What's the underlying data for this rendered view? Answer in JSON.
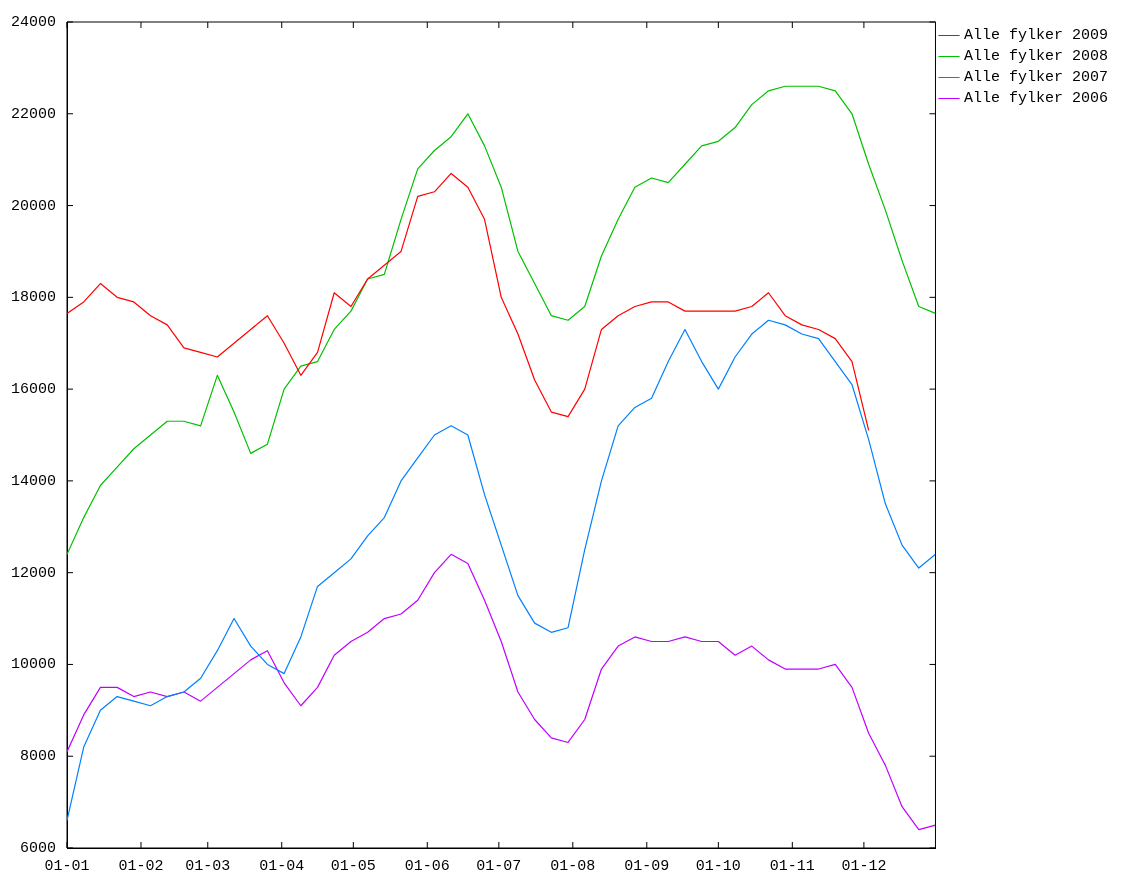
{
  "chart_data": {
    "type": "line",
    "x": [
      "--01-01",
      "--01-08",
      "--01-15",
      "--01-22",
      "--01-29",
      "--02-05",
      "--02-12",
      "--02-19",
      "--02-26",
      "--03-05",
      "--03-12",
      "--03-19",
      "--03-26",
      "--04-02",
      "--04-09",
      "--04-16",
      "--04-23",
      "--04-30",
      "--05-07",
      "--05-14",
      "--05-21",
      "--05-28",
      "--06-04",
      "--06-11",
      "--06-18",
      "--06-25",
      "--07-02",
      "--07-09",
      "--07-16",
      "--07-23",
      "--07-30",
      "--08-06",
      "--08-13",
      "--08-20",
      "--08-27",
      "--09-03",
      "--09-10",
      "--09-17",
      "--09-24",
      "--10-01",
      "--10-08",
      "--10-15",
      "--10-22",
      "--10-29",
      "--11-05",
      "--11-12",
      "--11-19",
      "--11-26",
      "--12-03",
      "--12-10",
      "--12-17",
      "--12-24",
      "--12-31"
    ],
    "series": [
      {
        "name": "Alle fylker 2009",
        "color": "#ff0000",
        "values": [
          17650,
          17900,
          18300,
          18000,
          17900,
          17600,
          17400,
          16900,
          16800,
          16700,
          17000,
          17300,
          17600,
          17000,
          16300,
          16800,
          18100,
          17800,
          18400,
          18700,
          19000,
          20200,
          20300,
          20700,
          20400,
          19700,
          18000,
          17200,
          16200,
          15500,
          15400,
          16000,
          17300,
          17600,
          17800,
          17900,
          17900,
          17700,
          17700,
          17700,
          17700,
          17800,
          18100,
          17600,
          17400,
          17300,
          17100,
          16600,
          15100,
          null,
          null,
          null,
          null
        ]
      },
      {
        "name": "Alle fylker 2008",
        "color": "#00c000",
        "values": [
          12400,
          13200,
          13900,
          14300,
          14700,
          15000,
          15300,
          15300,
          15200,
          16300,
          15500,
          14600,
          14800,
          16000,
          16500,
          16600,
          17300,
          17700,
          18400,
          18500,
          19700,
          20800,
          21200,
          21500,
          22000,
          21300,
          20400,
          19000,
          18300,
          17600,
          17500,
          17800,
          18900,
          19700,
          20400,
          20600,
          20500,
          20900,
          21300,
          21400,
          21700,
          22200,
          22500,
          22600,
          22600,
          22600,
          22500,
          22000,
          20900,
          19900,
          18800,
          17800,
          17650
        ]
      },
      {
        "name": "Alle fylker 2007",
        "color": "#0080ff",
        "values": [
          6600,
          8200,
          9000,
          9300,
          9200,
          9100,
          9300,
          9400,
          9700,
          10300,
          11000,
          10400,
          10000,
          9800,
          10600,
          11700,
          12000,
          12300,
          12800,
          13200,
          14000,
          14500,
          15000,
          15200,
          15000,
          13700,
          12600,
          11500,
          10900,
          10700,
          10800,
          12500,
          14000,
          15200,
          15600,
          15800,
          16600,
          17300,
          16600,
          16000,
          16700,
          17200,
          17500,
          17400,
          17200,
          17100,
          16600,
          16100,
          14900,
          13500,
          12600,
          12100,
          12400
        ]
      },
      {
        "name": "Alle fylker 2006",
        "color": "#c000ff",
        "values": [
          8100,
          8900,
          9500,
          9500,
          9300,
          9400,
          9300,
          9400,
          9200,
          9500,
          9800,
          10100,
          10300,
          9600,
          9100,
          9500,
          10200,
          10500,
          10700,
          11000,
          11100,
          11400,
          12000,
          12400,
          12200,
          11400,
          10500,
          9400,
          8800,
          8400,
          8300,
          8800,
          9900,
          10400,
          10600,
          10500,
          10500,
          10600,
          10500,
          10500,
          10200,
          10400,
          10100,
          9900,
          9900,
          9900,
          10000,
          9500,
          8500,
          7800,
          6900,
          6400,
          6500
        ]
      }
    ],
    "xlim": [
      "--01-01",
      "--12-31"
    ],
    "xticks": [
      {
        "value": "--01-01",
        "label": "01-01"
      },
      {
        "value": "--02-01",
        "label": "01-02"
      },
      {
        "value": "--03-01",
        "label": "01-03"
      },
      {
        "value": "--04-01",
        "label": "01-04"
      },
      {
        "value": "--05-01",
        "label": "01-05"
      },
      {
        "value": "--06-01",
        "label": "01-06"
      },
      {
        "value": "--07-01",
        "label": "01-07"
      },
      {
        "value": "--08-01",
        "label": "01-08"
      },
      {
        "value": "--09-01",
        "label": "01-09"
      },
      {
        "value": "--10-01",
        "label": "01-10"
      },
      {
        "value": "--11-01",
        "label": "01-11"
      },
      {
        "value": "--12-01",
        "label": "01-12"
      }
    ],
    "ylim": [
      6000,
      24000
    ],
    "yticks": [
      6000,
      8000,
      10000,
      12000,
      14000,
      16000,
      18000,
      20000,
      22000,
      24000
    ],
    "legend": "top right"
  }
}
